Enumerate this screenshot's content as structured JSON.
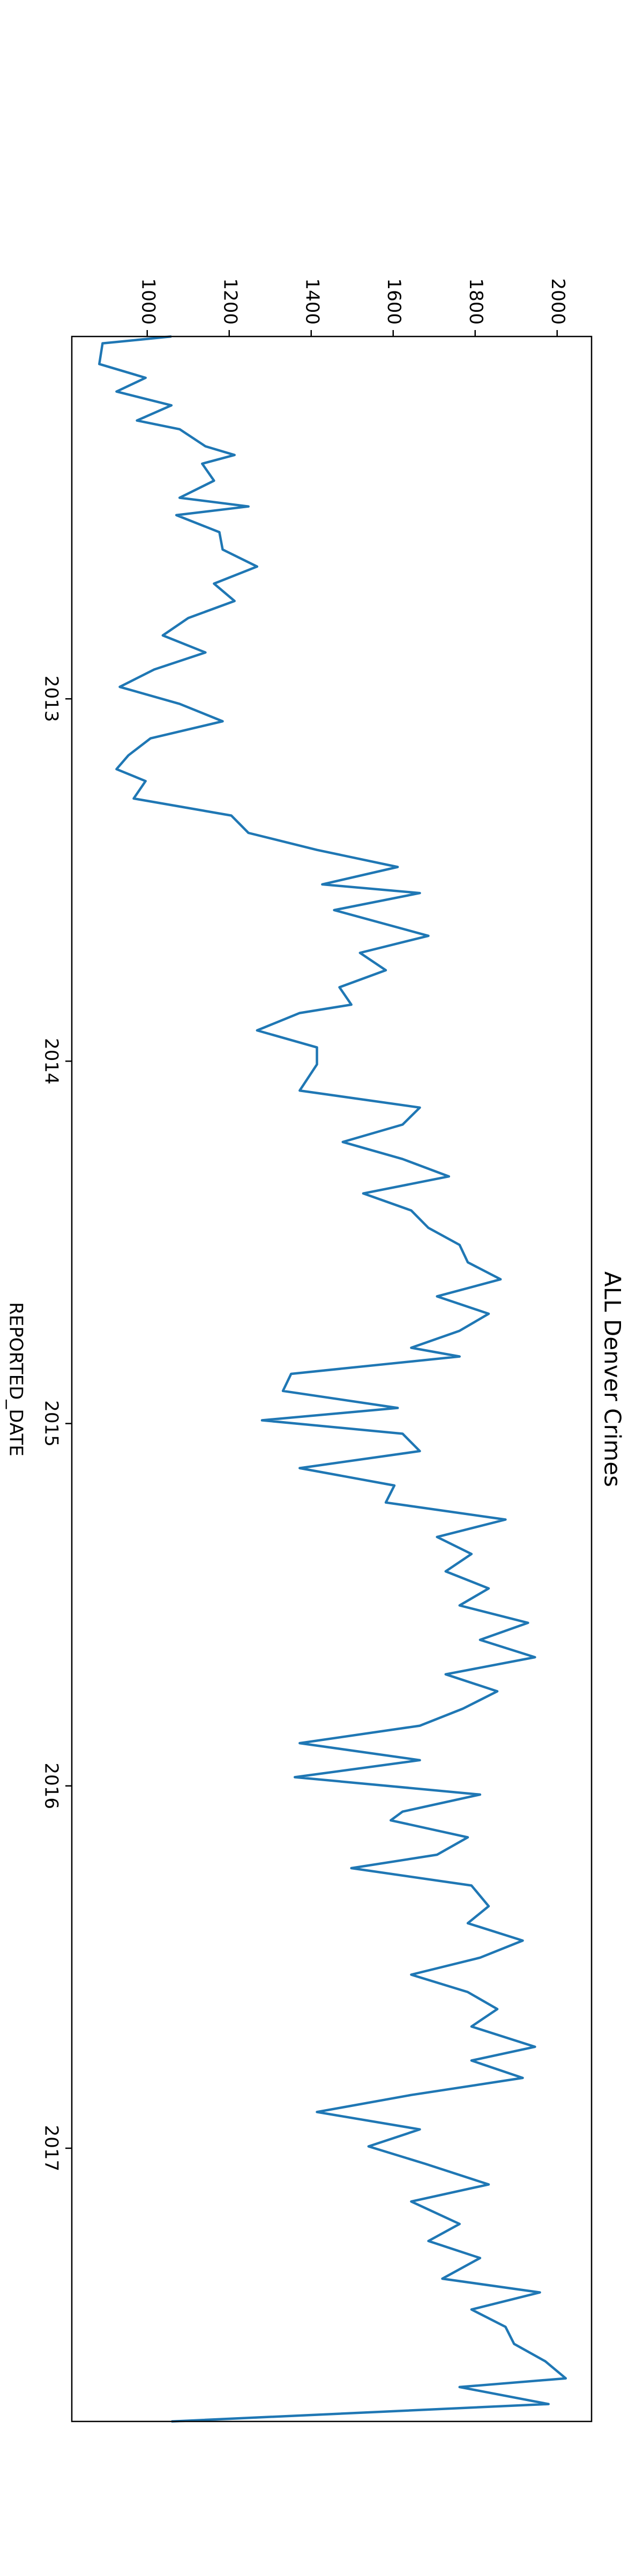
{
  "chart_data": {
    "type": "line",
    "title": "ALL Denver Crimes",
    "x_label": "REPORTED_DATE",
    "x": [
      2012.0,
      2012.019,
      2012.076,
      2012.114,
      2012.152,
      2012.19,
      2012.232,
      2012.256,
      2012.303,
      2012.327,
      2012.351,
      2012.398,
      2012.445,
      2012.469,
      2012.493,
      2012.54,
      2012.588,
      2012.635,
      2012.682,
      2012.73,
      2012.777,
      2012.825,
      2012.872,
      2012.919,
      2012.967,
      2013.014,
      2013.062,
      2013.109,
      2013.156,
      2013.194,
      2013.227,
      2013.275,
      2013.322,
      2013.37,
      2013.417,
      2013.464,
      2013.512,
      2013.536,
      2013.583,
      2013.654,
      2013.701,
      2013.749,
      2013.796,
      2013.844,
      2013.867,
      2013.915,
      2013.962,
      2014.009,
      2014.081,
      2014.128,
      2014.175,
      2014.223,
      2014.27,
      2014.318,
      2014.365,
      2014.412,
      2014.46,
      2014.507,
      2014.555,
      2014.602,
      2014.649,
      2014.697,
      2014.744,
      2014.791,
      2014.815,
      2014.863,
      2014.91,
      2014.957,
      2014.991,
      2015.028,
      2015.076,
      2015.123,
      2015.171,
      2015.218,
      2015.265,
      2015.313,
      2015.36,
      2015.408,
      2015.455,
      2015.502,
      2015.55,
      2015.597,
      2015.645,
      2015.692,
      2015.739,
      2015.787,
      2015.834,
      2015.882,
      2015.929,
      2015.976,
      2016.024,
      2016.071,
      2016.095,
      2016.142,
      2016.19,
      2016.227,
      2016.275,
      2016.332,
      2016.379,
      2016.427,
      2016.474,
      2016.521,
      2016.569,
      2016.616,
      2016.664,
      2016.72,
      2016.758,
      2016.806,
      2016.853,
      2016.9,
      2016.948,
      2016.995,
      2017.043,
      2017.1,
      2017.147,
      2017.209,
      2017.256,
      2017.303,
      2017.36,
      2017.398,
      2017.445,
      2017.493,
      2017.54,
      2017.588,
      2017.635,
      2017.659,
      2017.706,
      2017.754
    ],
    "series": [
      {
        "name": "ALL",
        "color": "#1f77b4",
        "values": [
          1059,
          891,
          883,
          996,
          925,
          1059,
          975,
          1079,
          1142,
          1213,
          1134,
          1163,
          1079,
          1247,
          1071,
          1176,
          1184,
          1268,
          1163,
          1213,
          1100,
          1038,
          1142,
          1017,
          933,
          1079,
          1184,
          1008,
          954,
          925,
          996,
          967,
          1205,
          1247,
          1414,
          1611,
          1427,
          1665,
          1456,
          1686,
          1519,
          1582,
          1469,
          1498,
          1372,
          1268,
          1414,
          1414,
          1372,
          1665,
          1623,
          1477,
          1623,
          1736,
          1527,
          1644,
          1686,
          1762,
          1782,
          1862,
          1707,
          1833,
          1762,
          1644,
          1762,
          1351,
          1331,
          1611,
          1280,
          1623,
          1665,
          1372,
          1603,
          1582,
          1874,
          1707,
          1791,
          1728,
          1833,
          1762,
          1929,
          1812,
          1946,
          1728,
          1854,
          1770,
          1665,
          1372,
          1665,
          1360,
          1812,
          1623,
          1594,
          1782,
          1707,
          1498,
          1791,
          1833,
          1782,
          1916,
          1812,
          1644,
          1782,
          1854,
          1791,
          1946,
          1791,
          1916,
          1644,
          1414,
          1665,
          1540,
          1678,
          1833,
          1644,
          1762,
          1686,
          1812,
          1720,
          1958,
          1791,
          1874,
          1895,
          1971,
          2021,
          1762,
          1979,
          1059
        ]
      }
    ],
    "xlim": [
      2012.0,
      2017.754
    ],
    "xticks": [
      2013,
      2014,
      2015,
      2016,
      2017
    ],
    "ylim": [
      816,
      2084
    ],
    "yticks": [
      1000,
      1200,
      1400,
      1600,
      1800,
      2000
    ]
  }
}
